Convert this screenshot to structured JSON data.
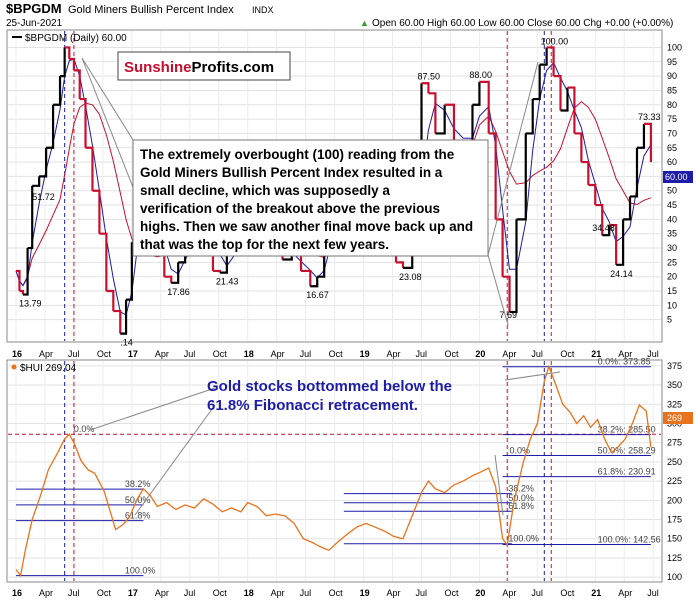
{
  "header": {
    "symbol": "$BPGDM",
    "name": "Gold Miners Bullish Percent Index",
    "exchange": "INDX",
    "date": "25-Jun-2021",
    "quote": "Open 60.00  High 60.00  Low 60.00  Close 60.00  Chg +0.00 (+0.00%)",
    "quote_arrow": "▲"
  },
  "logo": {
    "part1": "Sunshine",
    "part2": "Profits.com",
    "color1": "#c8102e",
    "color2": "#000000"
  },
  "colors": {
    "bp_line": "#000000",
    "bp_down": "#c8102e",
    "ma_short": "#1c1ca8",
    "ma_long": "#c8102e",
    "hui_line": "#e8731c",
    "fib_line": "#1c1ca8",
    "vline_blue": "#1c1ca8",
    "vline_red": "#c8102e",
    "annotation_blue": "#1c1ca8"
  },
  "top_panel": {
    "legend": "$BPGDM (Daily) 60.00",
    "y_ticks": [
      "100",
      "95",
      "90",
      "85",
      "80",
      "75",
      "70",
      "65",
      "60",
      "55",
      "50",
      "45",
      "40",
      "35",
      "30",
      "25",
      "20",
      "15",
      "10",
      "5"
    ],
    "x_ticks": [
      "16",
      "Apr",
      "Jul",
      "Oct",
      "17",
      "Apr",
      "Jul",
      "Oct",
      "18",
      "Apr",
      "Jul",
      "Oct",
      "19",
      "Apr",
      "Jul",
      "Oct",
      "20",
      "Apr",
      "Jul",
      "Oct",
      "21",
      "Apr",
      "Jul"
    ],
    "value_labels": [
      "13.79",
      "51.72",
      ".14",
      "17.86",
      "21.43",
      "32.14",
      "16.67",
      "23.08",
      "87.50",
      "88.00",
      "100.00",
      "7.69",
      "34.48",
      "24.14",
      "73.33"
    ],
    "current_marker": "60.00"
  },
  "bottom_panel": {
    "legend": "$HUI 269.04",
    "y_ticks": [
      "375",
      "350",
      "325",
      "300",
      "275",
      "250",
      "225",
      "200",
      "175",
      "150",
      "125",
      "100"
    ],
    "x_ticks": [
      "16",
      "Apr",
      "Jul",
      "Oct",
      "17",
      "Apr",
      "Jul",
      "Oct",
      "18",
      "Apr",
      "Jul",
      "Oct",
      "19",
      "Apr",
      "Jul",
      "Oct",
      "20",
      "Apr",
      "Jul",
      "Oct",
      "21",
      "Apr",
      "Jul"
    ],
    "fib_2016": [
      "0.0%",
      "38.2%",
      "50.0%",
      "61.8%",
      "100.0%"
    ],
    "fib_2020": [
      "38.2%",
      "50.0%",
      "61.8%",
      "100.0%"
    ],
    "fib_2021": [
      "0.0%: 373.85",
      "38.2%: 285.50",
      "50.0%: 258.29",
      "61.8%: 230.91",
      "100.0%: 142.56"
    ],
    "fib_small": [
      "0.0%"
    ],
    "current_marker": "269"
  },
  "annotations": {
    "box_text": "The extremely overbought (100) reading from the Gold Miners Bullish Percent Index resulted in a small decline, which was supposedly a verification of the breakout above the previous highs. Then we saw another final move back up and that was the top for the next few years.",
    "blue_text": "Gold stocks bottommed below the 61.8% Fibonacci retracement."
  },
  "chart_data": [
    {
      "type": "line",
      "series": [
        {
          "name": "$BPGDM (Daily)",
          "values": [
            [
              2016.0,
              22
            ],
            [
              2016.03,
              15
            ],
            [
              2016.06,
              13.79
            ],
            [
              2016.1,
              30
            ],
            [
              2016.14,
              51.72
            ],
            [
              2016.2,
              55
            ],
            [
              2016.26,
              65
            ],
            [
              2016.32,
              80
            ],
            [
              2016.38,
              90
            ],
            [
              2016.42,
              100
            ],
            [
              2016.46,
              96
            ],
            [
              2016.5,
              92
            ],
            [
              2016.55,
              82
            ],
            [
              2016.6,
              65
            ],
            [
              2016.66,
              50
            ],
            [
              2016.72,
              35
            ],
            [
              2016.78,
              15
            ],
            [
              2016.84,
              8
            ],
            [
              2016.9,
              0.14
            ],
            [
              2016.95,
              12
            ],
            [
              2017.0,
              32
            ],
            [
              2017.05,
              48
            ],
            [
              2017.1,
              55
            ],
            [
              2017.16,
              42
            ],
            [
              2017.22,
              30
            ],
            [
              2017.28,
              20
            ],
            [
              2017.34,
              17.86
            ],
            [
              2017.4,
              25
            ],
            [
              2017.46,
              35
            ],
            [
              2017.52,
              30
            ],
            [
              2017.58,
              45
            ],
            [
              2017.64,
              40
            ],
            [
              2017.7,
              22
            ],
            [
              2017.76,
              21.43
            ],
            [
              2017.82,
              28
            ],
            [
              2017.88,
              32.14
            ],
            [
              2017.94,
              40
            ],
            [
              2018.0,
              42
            ],
            [
              2018.06,
              35
            ],
            [
              2018.12,
              30
            ],
            [
              2018.18,
              36
            ],
            [
              2018.24,
              32
            ],
            [
              2018.3,
              26
            ],
            [
              2018.38,
              28
            ],
            [
              2018.46,
              22
            ],
            [
              2018.54,
              16.67
            ],
            [
              2018.6,
              20
            ],
            [
              2018.66,
              30
            ],
            [
              2018.72,
              45
            ],
            [
              2018.8,
              50
            ],
            [
              2018.88,
              45
            ],
            [
              2018.96,
              55
            ],
            [
              2019.04,
              50
            ],
            [
              2019.12,
              42
            ],
            [
              2019.2,
              36
            ],
            [
              2019.28,
              25
            ],
            [
              2019.34,
              23.08
            ],
            [
              2019.42,
              42
            ],
            [
              2019.5,
              87.5
            ],
            [
              2019.56,
              84
            ],
            [
              2019.62,
              70
            ],
            [
              2019.7,
              80
            ],
            [
              2019.78,
              65
            ],
            [
              2019.86,
              60
            ],
            [
              2019.94,
              80
            ],
            [
              2020.0,
              88
            ],
            [
              2020.08,
              70
            ],
            [
              2020.14,
              40
            ],
            [
              2020.2,
              20
            ],
            [
              2020.26,
              7.69
            ],
            [
              2020.32,
              40
            ],
            [
              2020.4,
              70
            ],
            [
              2020.46,
              82
            ],
            [
              2020.52,
              94
            ],
            [
              2020.58,
              100
            ],
            [
              2020.64,
              90
            ],
            [
              2020.7,
              78
            ],
            [
              2020.76,
              86
            ],
            [
              2020.82,
              70
            ],
            [
              2020.88,
              60
            ],
            [
              2020.94,
              52
            ],
            [
              2021.0,
              45
            ],
            [
              2021.06,
              34.48
            ],
            [
              2021.12,
              38
            ],
            [
              2021.18,
              24.14
            ],
            [
              2021.24,
              40
            ],
            [
              2021.3,
              48
            ],
            [
              2021.36,
              65
            ],
            [
              2021.42,
              73.33
            ],
            [
              2021.48,
              60
            ]
          ]
        }
      ],
      "y_ticks": [
        5,
        10,
        15,
        20,
        25,
        30,
        35,
        40,
        45,
        50,
        55,
        60,
        65,
        70,
        75,
        80,
        85,
        90,
        95,
        100
      ],
      "ylim": [
        0,
        104
      ],
      "grid": true
    },
    {
      "type": "line",
      "series": [
        {
          "name": "$HUI",
          "values": [
            [
              2016.0,
              110
            ],
            [
              2016.04,
              102
            ],
            [
              2016.08,
              135
            ],
            [
              2016.14,
              175
            ],
            [
              2016.22,
              210
            ],
            [
              2016.28,
              240
            ],
            [
              2016.36,
              262
            ],
            [
              2016.42,
              280
            ],
            [
              2016.46,
              286
            ],
            [
              2016.5,
              275
            ],
            [
              2016.56,
              252
            ],
            [
              2016.62,
              240
            ],
            [
              2016.68,
              235
            ],
            [
              2016.76,
              212
            ],
            [
              2016.82,
              182
            ],
            [
              2016.86,
              162
            ],
            [
              2016.92,
              168
            ],
            [
              2016.98,
              178
            ],
            [
              2017.04,
              200
            ],
            [
              2017.1,
              215
            ],
            [
              2017.16,
              206
            ],
            [
              2017.22,
              192
            ],
            [
              2017.3,
              197
            ],
            [
              2017.38,
              188
            ],
            [
              2017.46,
              194
            ],
            [
              2017.54,
              190
            ],
            [
              2017.62,
              202
            ],
            [
              2017.7,
              195
            ],
            [
              2017.78,
              185
            ],
            [
              2017.86,
              190
            ],
            [
              2017.94,
              185
            ],
            [
              2018.0,
              197
            ],
            [
              2018.08,
              192
            ],
            [
              2018.16,
              180
            ],
            [
              2018.24,
              182
            ],
            [
              2018.32,
              180
            ],
            [
              2018.4,
              170
            ],
            [
              2018.48,
              150
            ],
            [
              2018.56,
              145
            ],
            [
              2018.62,
              140
            ],
            [
              2018.7,
              135
            ],
            [
              2018.78,
              146
            ],
            [
              2018.86,
              156
            ],
            [
              2018.94,
              165
            ],
            [
              2019.02,
              170
            ],
            [
              2019.1,
              165
            ],
            [
              2019.18,
              160
            ],
            [
              2019.26,
              153
            ],
            [
              2019.34,
              150
            ],
            [
              2019.42,
              180
            ],
            [
              2019.5,
              210
            ],
            [
              2019.56,
              225
            ],
            [
              2019.62,
              215
            ],
            [
              2019.7,
              210
            ],
            [
              2019.78,
              220
            ],
            [
              2019.86,
              225
            ],
            [
              2019.94,
              232
            ],
            [
              2020.0,
              236
            ],
            [
              2020.08,
              242
            ],
            [
              2020.14,
              218
            ],
            [
              2020.2,
              150
            ],
            [
              2020.24,
              142
            ],
            [
              2020.3,
              200
            ],
            [
              2020.38,
              250
            ],
            [
              2020.44,
              280
            ],
            [
              2020.5,
              300
            ],
            [
              2020.56,
              355
            ],
            [
              2020.6,
              374
            ],
            [
              2020.66,
              350
            ],
            [
              2020.72,
              325
            ],
            [
              2020.78,
              315
            ],
            [
              2020.84,
              300
            ],
            [
              2020.9,
              310
            ],
            [
              2020.96,
              295
            ],
            [
              2021.02,
              305
            ],
            [
              2021.08,
              280
            ],
            [
              2021.14,
              262
            ],
            [
              2021.2,
              270
            ],
            [
              2021.26,
              280
            ],
            [
              2021.32,
              300
            ],
            [
              2021.38,
              324
            ],
            [
              2021.44,
              316
            ],
            [
              2021.48,
              269
            ]
          ]
        }
      ],
      "y_ticks": [
        100,
        125,
        150,
        175,
        200,
        225,
        250,
        275,
        300,
        325,
        350,
        375
      ],
      "ylim": [
        95,
        380
      ],
      "grid": true
    }
  ]
}
